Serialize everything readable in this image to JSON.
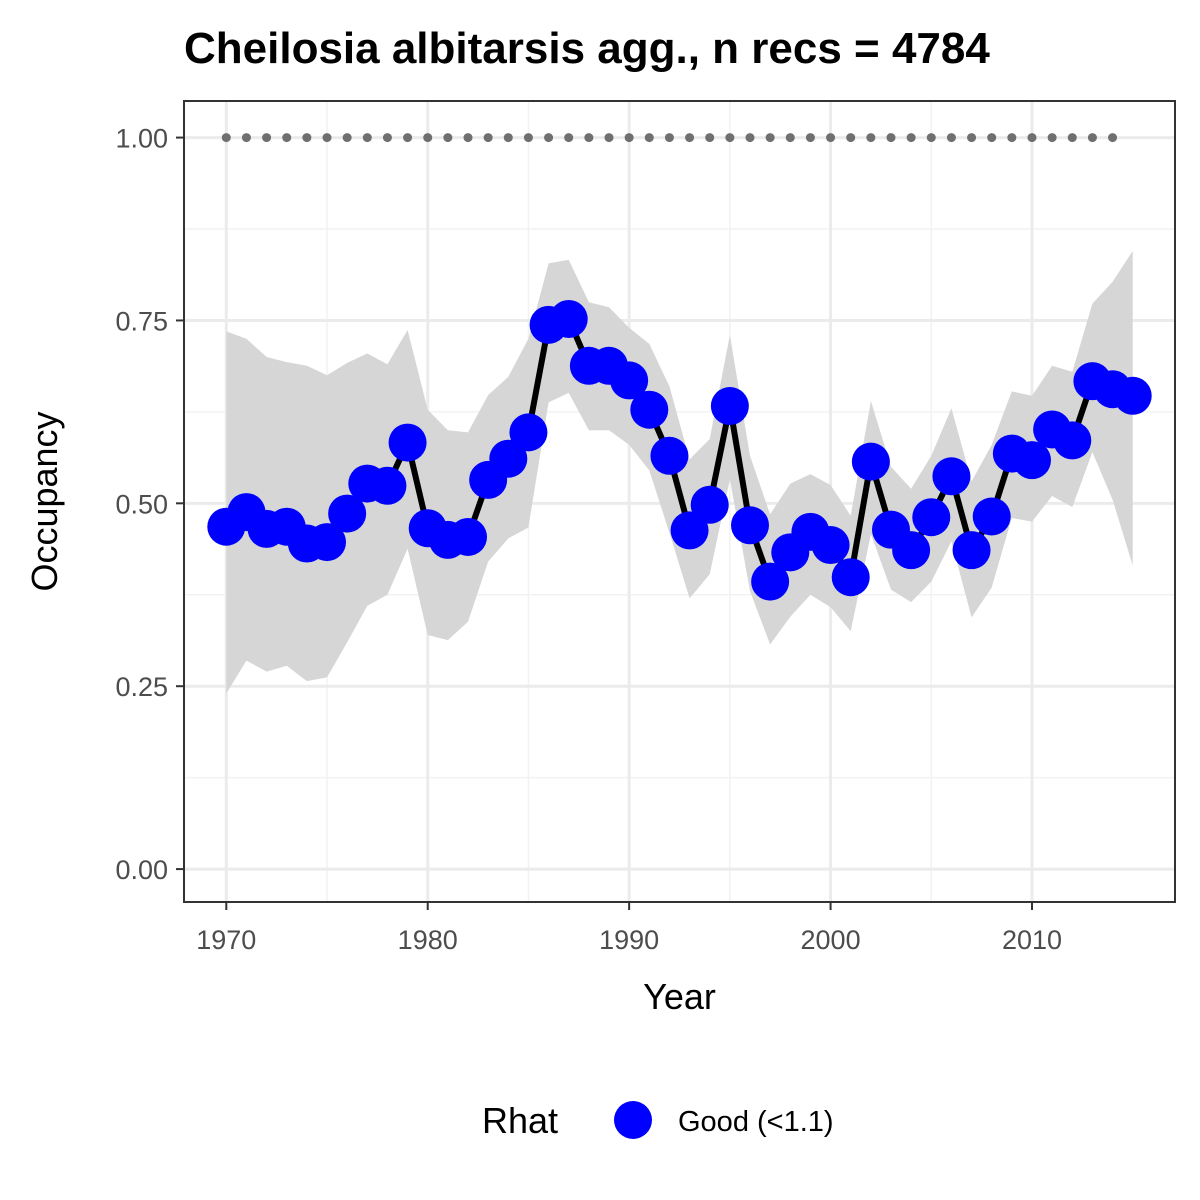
{
  "chart_data": {
    "type": "line",
    "title": "Cheilosia albitarsis agg., n recs = 4784",
    "xlabel": "Year",
    "ylabel": "Occupancy",
    "xlim": [
      1967.9,
      2017.1
    ],
    "ylim": [
      -0.045,
      1.05
    ],
    "x_ticks": [
      1970,
      1980,
      1990,
      2000,
      2010
    ],
    "x_tick_labels": [
      "1970",
      "1980",
      "1990",
      "2000",
      "2010"
    ],
    "y_ticks": [
      0,
      0.25,
      0.5,
      0.75,
      1.0
    ],
    "y_tick_labels": [
      "0.00",
      "0.25",
      "0.50",
      "0.75",
      "1.00"
    ],
    "grid": true,
    "legend": {
      "title": "Rhat",
      "position": "bottom",
      "entries": [
        {
          "label": "Good (<1.1)",
          "color": "#0000ff"
        }
      ]
    },
    "colors": {
      "points": "#0000ff",
      "line": "#000000",
      "ribbon": "#d6d6d6",
      "reference": "#6f6f6f"
    },
    "series": [
      {
        "type": "line+points",
        "x": [
          1970,
          1971,
          1972,
          1973,
          1974,
          1975,
          1976,
          1977,
          1978,
          1979,
          1980,
          1981,
          1982,
          1983,
          1984,
          1985,
          1986,
          1987,
          1988,
          1989,
          1990,
          1991,
          1992,
          1993,
          1994,
          1995,
          1996,
          1997,
          1998,
          1999,
          2000,
          2001,
          2002,
          2003,
          2004,
          2005,
          2006,
          2007,
          2008,
          2009,
          2010,
          2011,
          2012,
          2013,
          2014,
          2015
        ],
        "values": [
          0.468,
          0.488,
          0.465,
          0.468,
          0.445,
          0.447,
          0.486,
          0.527,
          0.524,
          0.583,
          0.466,
          0.45,
          0.454,
          0.532,
          0.561,
          0.597,
          0.744,
          0.752,
          0.688,
          0.688,
          0.668,
          0.628,
          0.565,
          0.463,
          0.498,
          0.633,
          0.47,
          0.393,
          0.433,
          0.461,
          0.443,
          0.399,
          0.557,
          0.464,
          0.436,
          0.481,
          0.537,
          0.436,
          0.482,
          0.568,
          0.559,
          0.601,
          0.586,
          0.667,
          0.656,
          0.647
        ]
      },
      {
        "type": "ribbon",
        "x": [
          1970,
          1971,
          1972,
          1973,
          1974,
          1975,
          1976,
          1977,
          1978,
          1979,
          1980,
          1981,
          1982,
          1983,
          1984,
          1985,
          1986,
          1987,
          1988,
          1989,
          1990,
          1991,
          1992,
          1993,
          1994,
          1995,
          1996,
          1997,
          1998,
          1999,
          2000,
          2001,
          2002,
          2003,
          2004,
          2005,
          2006,
          2007,
          2008,
          2009,
          2010,
          2011,
          2012,
          2013,
          2014,
          2015
        ],
        "lower": [
          0.24,
          0.285,
          0.27,
          0.278,
          0.257,
          0.262,
          0.31,
          0.36,
          0.375,
          0.438,
          0.32,
          0.313,
          0.338,
          0.42,
          0.452,
          0.467,
          0.638,
          0.651,
          0.6,
          0.6,
          0.58,
          0.545,
          0.46,
          0.37,
          0.403,
          0.533,
          0.38,
          0.307,
          0.345,
          0.375,
          0.358,
          0.325,
          0.458,
          0.382,
          0.365,
          0.393,
          0.448,
          0.344,
          0.385,
          0.48,
          0.475,
          0.51,
          0.495,
          0.57,
          0.505,
          0.415
        ],
        "upper": [
          0.735,
          0.725,
          0.7,
          0.693,
          0.688,
          0.675,
          0.692,
          0.705,
          0.69,
          0.737,
          0.628,
          0.6,
          0.597,
          0.648,
          0.673,
          0.725,
          0.828,
          0.833,
          0.775,
          0.768,
          0.74,
          0.718,
          0.66,
          0.56,
          0.588,
          0.73,
          0.565,
          0.485,
          0.527,
          0.54,
          0.525,
          0.483,
          0.64,
          0.55,
          0.52,
          0.565,
          0.63,
          0.53,
          0.58,
          0.653,
          0.647,
          0.688,
          0.68,
          0.773,
          0.803,
          0.845
        ]
      },
      {
        "type": "reference-points",
        "x": [
          1970,
          1971,
          1972,
          1973,
          1974,
          1975,
          1976,
          1977,
          1978,
          1979,
          1980,
          1981,
          1982,
          1983,
          1984,
          1985,
          1986,
          1987,
          1988,
          1989,
          1990,
          1991,
          1992,
          1993,
          1994,
          1995,
          1996,
          1997,
          1998,
          1999,
          2000,
          2001,
          2002,
          2003,
          2004,
          2005,
          2006,
          2007,
          2008,
          2009,
          2010,
          2011,
          2012,
          2013,
          2014
        ],
        "values": [
          1,
          1,
          1,
          1,
          1,
          1,
          1,
          1,
          1,
          1,
          1,
          1,
          1,
          1,
          1,
          1,
          1,
          1,
          1,
          1,
          1,
          1,
          1,
          1,
          1,
          1,
          1,
          1,
          1,
          1,
          1,
          1,
          1,
          1,
          1,
          1,
          1,
          1,
          1,
          1,
          1,
          1,
          1,
          1,
          1
        ]
      }
    ]
  }
}
